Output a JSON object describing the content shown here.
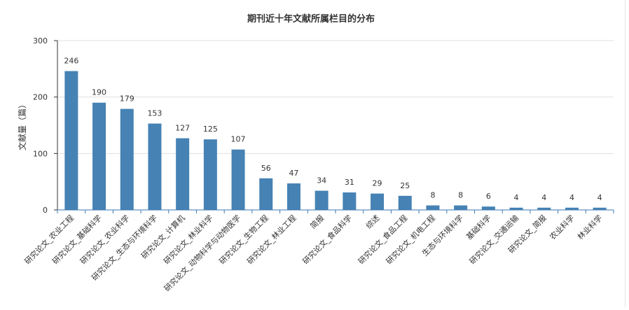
{
  "chart_data": {
    "type": "bar",
    "title": "期刊近十年文献所属栏目的分布",
    "xlabel": "",
    "ylabel": "文献量（篇）",
    "ylim": [
      0,
      300
    ],
    "yticks": [
      0,
      100,
      200,
      300
    ],
    "grid": true,
    "bar_color": "#4682b4",
    "categories": [
      "研究论文_农业工程",
      "研究论文_基础科学",
      "研究论文_农业科学",
      "研究论文_生态与环境科学",
      "研究论文_计算机",
      "研究论文_林业科学",
      "研究论文_动物科学与动物医学",
      "研究论文_生物工程",
      "研究论文_林业工程",
      "简报",
      "研究论文_食品科学",
      "综述",
      "研究论文_食品工程",
      "研究论文_机电工程",
      "生态与环境科学",
      "基础科学",
      "研究论文_交通运输",
      "研究论文_简报",
      "农业科学",
      "林业科学"
    ],
    "values": [
      246,
      190,
      179,
      153,
      127,
      125,
      107,
      56,
      47,
      34,
      31,
      29,
      25,
      8,
      8,
      6,
      4,
      4,
      4,
      4
    ]
  }
}
